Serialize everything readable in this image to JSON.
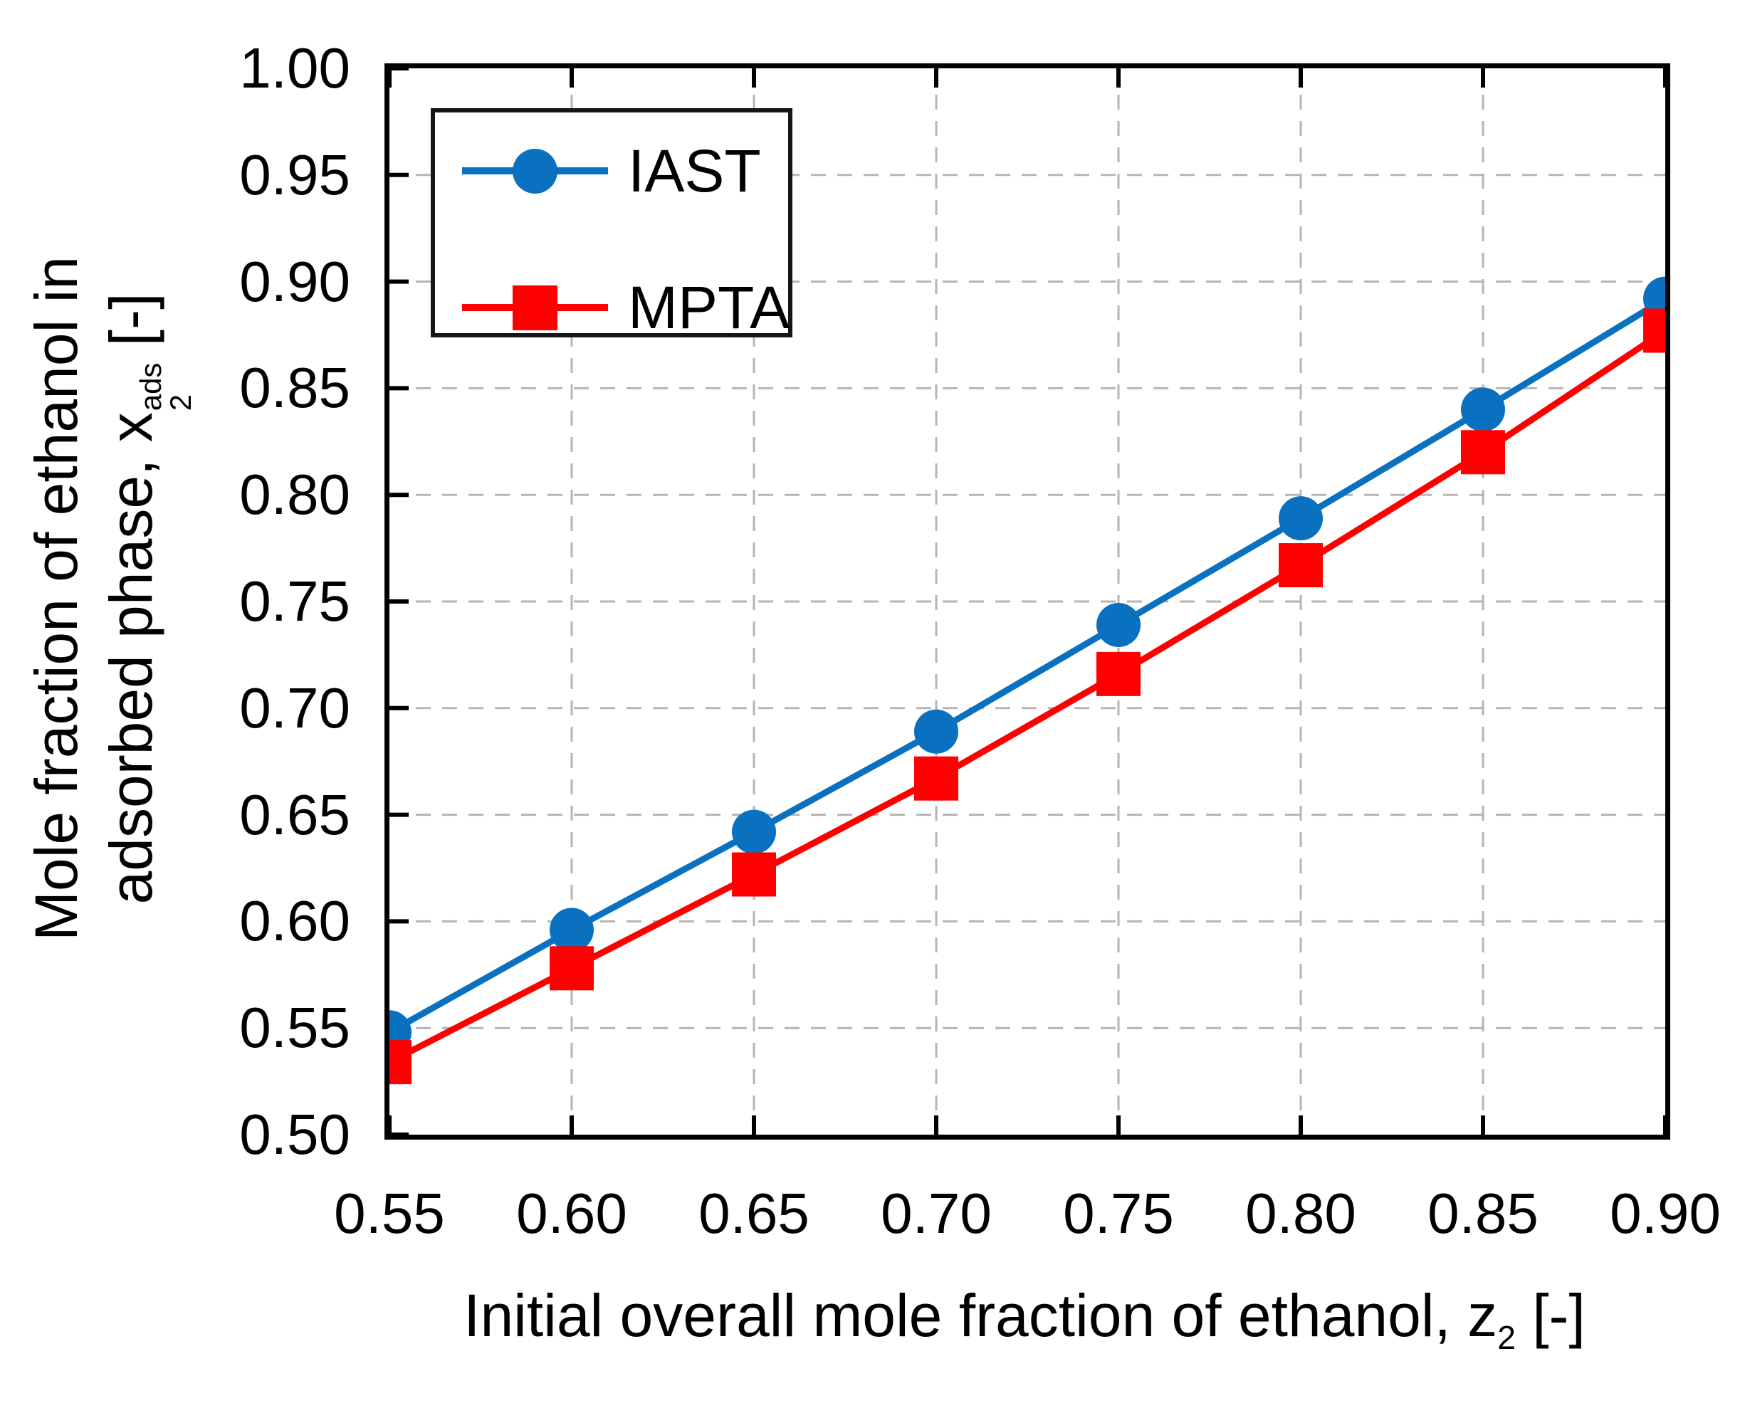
{
  "chart_data": {
    "type": "line",
    "x": [
      0.55,
      0.6,
      0.65,
      0.7,
      0.75,
      0.8,
      0.85,
      0.9
    ],
    "series": [
      {
        "name": "IAST",
        "color": "#0a70c0",
        "marker": "circle",
        "values": [
          0.548,
          0.596,
          0.642,
          0.689,
          0.739,
          0.789,
          0.84,
          0.892
        ]
      },
      {
        "name": "MPTA",
        "color": "#ff0000",
        "marker": "square",
        "values": [
          0.534,
          0.578,
          0.622,
          0.667,
          0.716,
          0.767,
          0.82,
          0.877
        ]
      }
    ],
    "title": "",
    "xlabel": "Initial overall mole fraction of ethanol, z2 [-]",
    "ylabel": "Mole fraction of ethanol in adsorbed phase, x2^ads [-]",
    "xlim": [
      0.55,
      0.9
    ],
    "ylim": [
      0.5,
      1.0
    ],
    "xticks": [
      "0.55",
      "0.60",
      "0.65",
      "0.70",
      "0.75",
      "0.80",
      "0.85",
      "0.90"
    ],
    "yticks": [
      "1.00",
      "0.95",
      "0.90",
      "0.85",
      "0.80",
      "0.75",
      "0.70",
      "0.65",
      "0.60",
      "0.55",
      "0.50"
    ],
    "grid": "dashed",
    "legend_position": "top-left"
  },
  "x_axis": {
    "title": {
      "text": "Initial overall mole fraction of ethanol, z",
      "sub": "2",
      "suffix": " [-]"
    }
  },
  "y_axis": {
    "title": {
      "line1": "Mole fraction of ethanol in",
      "line2_prefix": "adsorbed phase, x",
      "line2_sup": "ads",
      "line2_sub": "2",
      "line2_suffix": " [-]"
    }
  },
  "legend": {
    "items": [
      {
        "label": "IAST"
      },
      {
        "label": "MPTA"
      }
    ]
  },
  "colors": {
    "axis": "#000000",
    "grid": "#b5b5b5",
    "iast_blue": "#0a70c0",
    "mpta_red": "#ff0000"
  }
}
